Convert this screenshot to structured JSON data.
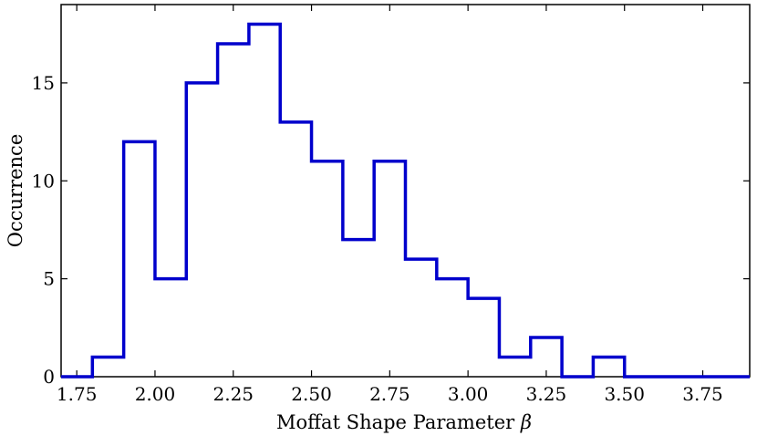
{
  "chart_data": {
    "type": "histogram",
    "bin_edges": [
      1.7,
      1.8,
      1.9,
      2.0,
      2.1,
      2.2,
      2.3,
      2.4,
      2.5,
      2.6,
      2.7,
      2.8,
      2.9,
      3.0,
      3.1,
      3.2,
      3.3,
      3.4,
      3.5,
      3.6,
      3.7,
      3.8,
      3.9
    ],
    "counts": [
      0,
      1,
      12,
      5,
      15,
      17,
      18,
      13,
      11,
      7,
      11,
      6,
      5,
      4,
      1,
      2,
      0,
      1,
      0,
      0,
      0,
      0
    ],
    "xlabel": "Moffat Shape Parameter",
    "xlabel_symbol": "β",
    "ylabel": "Occurrence",
    "xlim": [
      1.7,
      3.9
    ],
    "ylim": [
      0,
      19
    ],
    "x_ticks": [
      "1.75",
      "2.00",
      "2.25",
      "2.50",
      "2.75",
      "3.00",
      "3.25",
      "3.50",
      "3.75"
    ],
    "y_ticks": [
      "0",
      "5",
      "10",
      "15"
    ],
    "grid": false,
    "line_color": "#0000cc"
  }
}
